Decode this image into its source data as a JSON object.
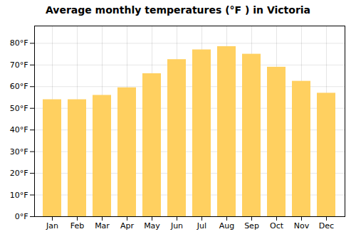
{
  "chart_data": {
    "type": "bar",
    "title": "Average monthly temperatures (°F ) in Victoria",
    "categories": [
      "Jan",
      "Feb",
      "Mar",
      "Apr",
      "May",
      "Jun",
      "Jul",
      "Aug",
      "Sep",
      "Oct",
      "Nov",
      "Dec"
    ],
    "values": [
      54,
      54,
      56,
      59.5,
      66,
      72.5,
      77,
      78.5,
      75,
      69,
      62.5,
      57
    ],
    "color": "#FFD060",
    "ylim": [
      0,
      88
    ],
    "yticks": [
      {
        "value": 0,
        "label": "0°F"
      },
      {
        "value": 10,
        "label": "10°F"
      },
      {
        "value": 20,
        "label": "20°F"
      },
      {
        "value": 30,
        "label": "30°F"
      },
      {
        "value": 40,
        "label": "40°F"
      },
      {
        "value": 50,
        "label": "50°F"
      },
      {
        "value": 60,
        "label": "60°F"
      },
      {
        "value": 70,
        "label": "70°F"
      },
      {
        "value": 80,
        "label": "80°F"
      }
    ],
    "grid": true
  }
}
